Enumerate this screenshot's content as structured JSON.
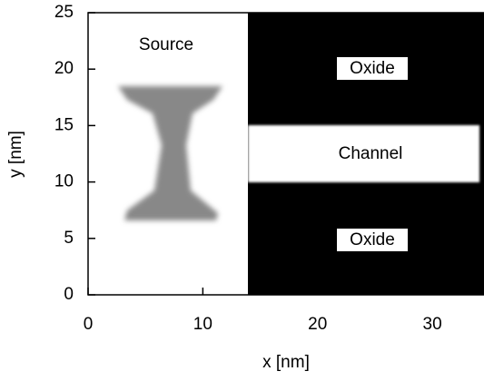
{
  "chart_data": {
    "type": "image",
    "xlabel": "x [nm]",
    "ylabel": "y [nm]",
    "xlim": [
      0,
      34.5
    ],
    "ylim": [
      0,
      25
    ],
    "xticks": [
      0,
      10,
      20,
      30
    ],
    "yticks": [
      0,
      5,
      10,
      15,
      20,
      25
    ],
    "annotations": [
      "Source",
      "Oxide",
      "Channel",
      "Oxide"
    ]
  }
}
